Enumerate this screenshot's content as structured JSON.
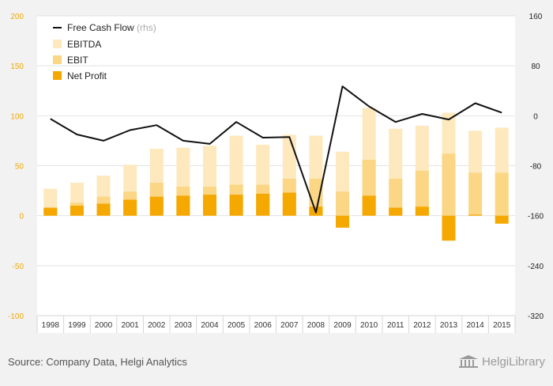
{
  "source_text": "Source: Company Data, Helgi Analytics",
  "brand": {
    "name": "HelgiLibrary",
    "icon": "library-building-icon"
  },
  "colors": {
    "background": "#f2f2f2",
    "plot_background": "#ffffff",
    "ebitda": "#fde9bd",
    "ebit": "#fbd685",
    "net_profit": "#f5a800",
    "fcf": "#111111",
    "left_axis_text": "#f0a800",
    "right_axis_text": "#222222",
    "grid": "#e3e3e3"
  },
  "chart_data": {
    "type": "bar",
    "categories": [
      "1998",
      "1999",
      "2000",
      "2001",
      "2002",
      "2003",
      "2004",
      "2005",
      "2006",
      "2007",
      "2008",
      "2009",
      "2010",
      "2011",
      "2012",
      "2013",
      "2014",
      "2015"
    ],
    "series": [
      {
        "name": "EBITDA",
        "type": "bar",
        "axis": "left",
        "values": [
          27,
          33,
          40,
          51,
          67,
          68,
          70,
          80,
          71,
          81,
          80,
          64,
          108,
          87,
          90,
          103,
          85,
          88
        ]
      },
      {
        "name": "EBIT",
        "type": "bar",
        "axis": "left",
        "values": [
          7,
          13,
          19,
          24,
          33,
          29,
          29,
          31,
          31,
          37,
          37,
          24,
          56,
          37,
          45,
          62,
          43,
          43
        ]
      },
      {
        "name": "Net Profit",
        "type": "bar",
        "axis": "left",
        "values": [
          8,
          10,
          12,
          16,
          19,
          20,
          21,
          21,
          22,
          23,
          9,
          -12,
          20,
          8,
          9,
          -25,
          1,
          -8
        ]
      },
      {
        "name": "Free Cash Flow",
        "legend_suffix": "(rhs)",
        "type": "line",
        "axis": "right",
        "values": [
          -5,
          -30,
          -40,
          -23,
          -15,
          -40,
          -45,
          -10,
          -35,
          -34,
          -155,
          47,
          15,
          -10,
          3,
          -6,
          20,
          5
        ]
      }
    ],
    "left_axis": {
      "ylim": [
        -100,
        200
      ],
      "ticks": [
        200,
        150,
        100,
        50,
        0,
        -50,
        -100
      ]
    },
    "right_axis": {
      "ylim": [
        -320,
        160
      ],
      "ticks": [
        160,
        80,
        0,
        -80,
        -160,
        -240,
        -320
      ]
    },
    "legend_position": "top-left",
    "grid": true
  }
}
